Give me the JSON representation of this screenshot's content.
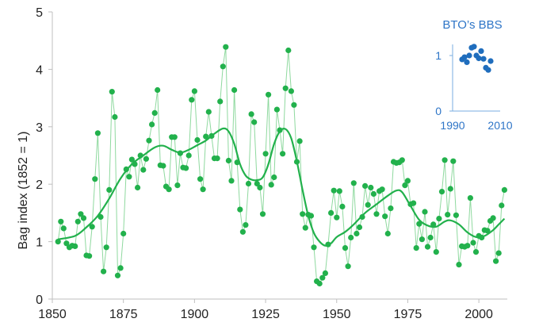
{
  "chart_data": [
    {
      "type": "scatter",
      "title": "",
      "xlabel": "",
      "ylabel": "Bag index (1852 = 1)",
      "xlim": [
        1850,
        2010
      ],
      "ylim": [
        0,
        5
      ],
      "xticks": [
        "1850",
        "1875",
        "1900",
        "1925",
        "1950",
        "1975",
        "2000"
      ],
      "yticks": [
        "0",
        "1",
        "2",
        "3",
        "4",
        "5"
      ],
      "grid": false,
      "colors": {
        "points": "#22b14c",
        "connector": "#8fd99f",
        "trend": "#22b14c",
        "axis": "#bfbfbf",
        "text": "#222222"
      },
      "series": [
        {
          "values": [
            [
              1852,
              1.0
            ],
            [
              1853,
              1.35
            ],
            [
              1854,
              1.23
            ],
            [
              1855,
              0.97
            ],
            [
              1856,
              0.9
            ],
            [
              1857,
              0.93
            ],
            [
              1858,
              0.92
            ],
            [
              1859,
              1.35
            ],
            [
              1860,
              1.48
            ],
            [
              1861,
              1.41
            ],
            [
              1862,
              0.76
            ],
            [
              1863,
              0.75
            ],
            [
              1864,
              1.26
            ],
            [
              1865,
              2.09
            ],
            [
              1866,
              2.89
            ],
            [
              1867,
              1.43
            ],
            [
              1868,
              0.48
            ],
            [
              1869,
              0.9
            ],
            [
              1870,
              1.9
            ],
            [
              1871,
              3.61
            ],
            [
              1872,
              3.17
            ],
            [
              1873,
              0.41
            ],
            [
              1874,
              0.54
            ],
            [
              1875,
              1.14
            ],
            [
              1876,
              2.26
            ],
            [
              1877,
              2.13
            ],
            [
              1878,
              2.43
            ],
            [
              1879,
              2.35
            ],
            [
              1880,
              1.94
            ],
            [
              1881,
              2.5
            ],
            [
              1882,
              2.25
            ],
            [
              1883,
              2.44
            ],
            [
              1884,
              2.76
            ],
            [
              1885,
              3.04
            ],
            [
              1886,
              3.24
            ],
            [
              1887,
              3.64
            ],
            [
              1888,
              2.33
            ],
            [
              1889,
              2.32
            ],
            [
              1890,
              1.96
            ],
            [
              1891,
              1.91
            ],
            [
              1892,
              2.82
            ],
            [
              1893,
              2.82
            ],
            [
              1894,
              1.98
            ],
            [
              1895,
              2.54
            ],
            [
              1896,
              2.29
            ],
            [
              1897,
              2.28
            ],
            [
              1898,
              2.5
            ],
            [
              1899,
              3.47
            ],
            [
              1900,
              3.62
            ],
            [
              1901,
              2.77
            ],
            [
              1902,
              2.09
            ],
            [
              1903,
              1.91
            ],
            [
              1904,
              2.83
            ],
            [
              1905,
              3.26
            ],
            [
              1906,
              2.84
            ],
            [
              1907,
              2.45
            ],
            [
              1908,
              2.45
            ],
            [
              1909,
              3.44
            ],
            [
              1910,
              4.05
            ],
            [
              1911,
              4.39
            ],
            [
              1912,
              2.41
            ],
            [
              1913,
              2.06
            ],
            [
              1914,
              3.64
            ],
            [
              1915,
              2.38
            ],
            [
              1916,
              1.56
            ],
            [
              1917,
              1.17
            ],
            [
              1918,
              1.29
            ],
            [
              1919,
              2.01
            ],
            [
              1920,
              3.22
            ],
            [
              1921,
              3.08
            ],
            [
              1922,
              2.01
            ],
            [
              1923,
              1.94
            ],
            [
              1924,
              1.48
            ],
            [
              1925,
              2.53
            ],
            [
              1926,
              3.56
            ],
            [
              1927,
              1.99
            ],
            [
              1928,
              2.12
            ],
            [
              1929,
              3.3
            ],
            [
              1930,
              2.94
            ],
            [
              1931,
              2.53
            ],
            [
              1932,
              3.67
            ],
            [
              1933,
              4.33
            ],
            [
              1934,
              3.62
            ],
            [
              1935,
              3.38
            ],
            [
              1936,
              2.39
            ],
            [
              1937,
              2.75
            ],
            [
              1938,
              1.48
            ],
            [
              1939,
              1.24
            ],
            [
              1940,
              1.47
            ],
            [
              1941,
              1.45
            ],
            [
              1942,
              0.9
            ],
            [
              1943,
              0.31
            ],
            [
              1944,
              0.27
            ],
            [
              1945,
              0.37
            ],
            [
              1946,
              0.45
            ],
            [
              1947,
              0.95
            ],
            [
              1948,
              1.5
            ],
            [
              1949,
              1.89
            ],
            [
              1950,
              1.42
            ],
            [
              1951,
              1.88
            ],
            [
              1952,
              1.61
            ],
            [
              1953,
              0.89
            ],
            [
              1954,
              0.57
            ],
            [
              1955,
              1.07
            ],
            [
              1956,
              2.02
            ],
            [
              1957,
              1.14
            ],
            [
              1958,
              1.25
            ],
            [
              1959,
              1.43
            ],
            [
              1960,
              1.97
            ],
            [
              1961,
              1.64
            ],
            [
              1962,
              1.94
            ],
            [
              1963,
              1.83
            ],
            [
              1964,
              1.48
            ],
            [
              1965,
              1.88
            ],
            [
              1966,
              1.91
            ],
            [
              1967,
              1.44
            ],
            [
              1968,
              1.14
            ],
            [
              1969,
              1.58
            ],
            [
              1970,
              2.39
            ],
            [
              1971,
              2.37
            ],
            [
              1972,
              2.38
            ],
            [
              1973,
              2.42
            ],
            [
              1974,
              1.98
            ],
            [
              1975,
              2.06
            ],
            [
              1976,
              1.65
            ],
            [
              1977,
              1.67
            ],
            [
              1978,
              0.89
            ],
            [
              1979,
              1.31
            ],
            [
              1980,
              1.04
            ],
            [
              1981,
              1.52
            ],
            [
              1982,
              0.91
            ],
            [
              1983,
              1.07
            ],
            [
              1984,
              1.3
            ],
            [
              1985,
              0.82
            ],
            [
              1986,
              1.4
            ],
            [
              1987,
              1.87
            ],
            [
              1988,
              2.42
            ],
            [
              1989,
              1.47
            ],
            [
              1990,
              1.92
            ],
            [
              1991,
              2.4
            ],
            [
              1992,
              1.46
            ],
            [
              1993,
              0.6
            ],
            [
              1994,
              0.92
            ],
            [
              1995,
              0.91
            ],
            [
              1996,
              0.93
            ],
            [
              1997,
              1.76
            ],
            [
              1998,
              0.98
            ],
            [
              1999,
              0.82
            ],
            [
              2000,
              1.1
            ],
            [
              2001,
              1.07
            ],
            [
              2002,
              1.2
            ],
            [
              2003,
              1.19
            ],
            [
              2004,
              1.36
            ],
            [
              2005,
              1.41
            ],
            [
              2006,
              0.66
            ],
            [
              2007,
              0.8
            ],
            [
              2008,
              1.63
            ],
            [
              2009,
              1.9
            ]
          ]
        },
        {
          "values": [
            [
              1852,
              1.04
            ],
            [
              1858,
              1.1
            ],
            [
              1862,
              1.25
            ],
            [
              1866,
              1.45
            ],
            [
              1870,
              1.75
            ],
            [
              1874,
              2.1
            ],
            [
              1878,
              2.35
            ],
            [
              1882,
              2.5
            ],
            [
              1886,
              2.64
            ],
            [
              1889,
              2.67
            ],
            [
              1892,
              2.6
            ],
            [
              1895,
              2.55
            ],
            [
              1898,
              2.6
            ],
            [
              1901,
              2.68
            ],
            [
              1904,
              2.76
            ],
            [
              1907,
              2.88
            ],
            [
              1910,
              2.97
            ],
            [
              1912,
              2.92
            ],
            [
              1914,
              2.7
            ],
            [
              1916,
              2.35
            ],
            [
              1918,
              2.15
            ],
            [
              1920,
              2.08
            ],
            [
              1922,
              2.07
            ],
            [
              1924,
              2.12
            ],
            [
              1926,
              2.35
            ],
            [
              1928,
              2.7
            ],
            [
              1930,
              2.92
            ],
            [
              1932,
              2.96
            ],
            [
              1934,
              2.8
            ],
            [
              1936,
              2.4
            ],
            [
              1938,
              1.9
            ],
            [
              1940,
              1.45
            ],
            [
              1942,
              1.15
            ],
            [
              1944,
              1.0
            ],
            [
              1946,
              0.93
            ],
            [
              1948,
              0.97
            ],
            [
              1950,
              1.08
            ],
            [
              1953,
              1.17
            ],
            [
              1956,
              1.3
            ],
            [
              1960,
              1.5
            ],
            [
              1964,
              1.65
            ],
            [
              1968,
              1.8
            ],
            [
              1971,
              1.89
            ],
            [
              1973,
              1.86
            ],
            [
              1976,
              1.62
            ],
            [
              1979,
              1.38
            ],
            [
              1982,
              1.28
            ],
            [
              1985,
              1.26
            ],
            [
              1988,
              1.35
            ],
            [
              1990,
              1.37
            ],
            [
              1993,
              1.3
            ],
            [
              1996,
              1.16
            ],
            [
              1999,
              1.08
            ],
            [
              2002,
              1.1
            ],
            [
              2005,
              1.2
            ],
            [
              2007,
              1.3
            ],
            [
              2009,
              1.4
            ]
          ]
        }
      ]
    },
    {
      "type": "scatter",
      "title": "BTO’s BBS",
      "xlim": [
        1990,
        2010
      ],
      "ylim": [
        0,
        1.2
      ],
      "xticks": [
        "1990",
        "2010"
      ],
      "yticks": [
        "0",
        "1"
      ],
      "grid": false,
      "colors": {
        "points": "#1f6dbd",
        "text": "#2e75c7",
        "axis": "#7aaee0"
      },
      "series": [
        {
          "values": [
            [
              1994,
              0.93
            ],
            [
              1995,
              0.97
            ],
            [
              1996,
              0.88
            ],
            [
              1997,
              1.0
            ],
            [
              1998,
              1.14
            ],
            [
              1999,
              1.16
            ],
            [
              2000,
              1.0
            ],
            [
              2001,
              0.95
            ],
            [
              2002,
              1.08
            ],
            [
              2003,
              0.94
            ],
            [
              2004,
              0.78
            ],
            [
              2005,
              0.74
            ],
            [
              2006,
              0.9
            ]
          ]
        }
      ]
    }
  ]
}
